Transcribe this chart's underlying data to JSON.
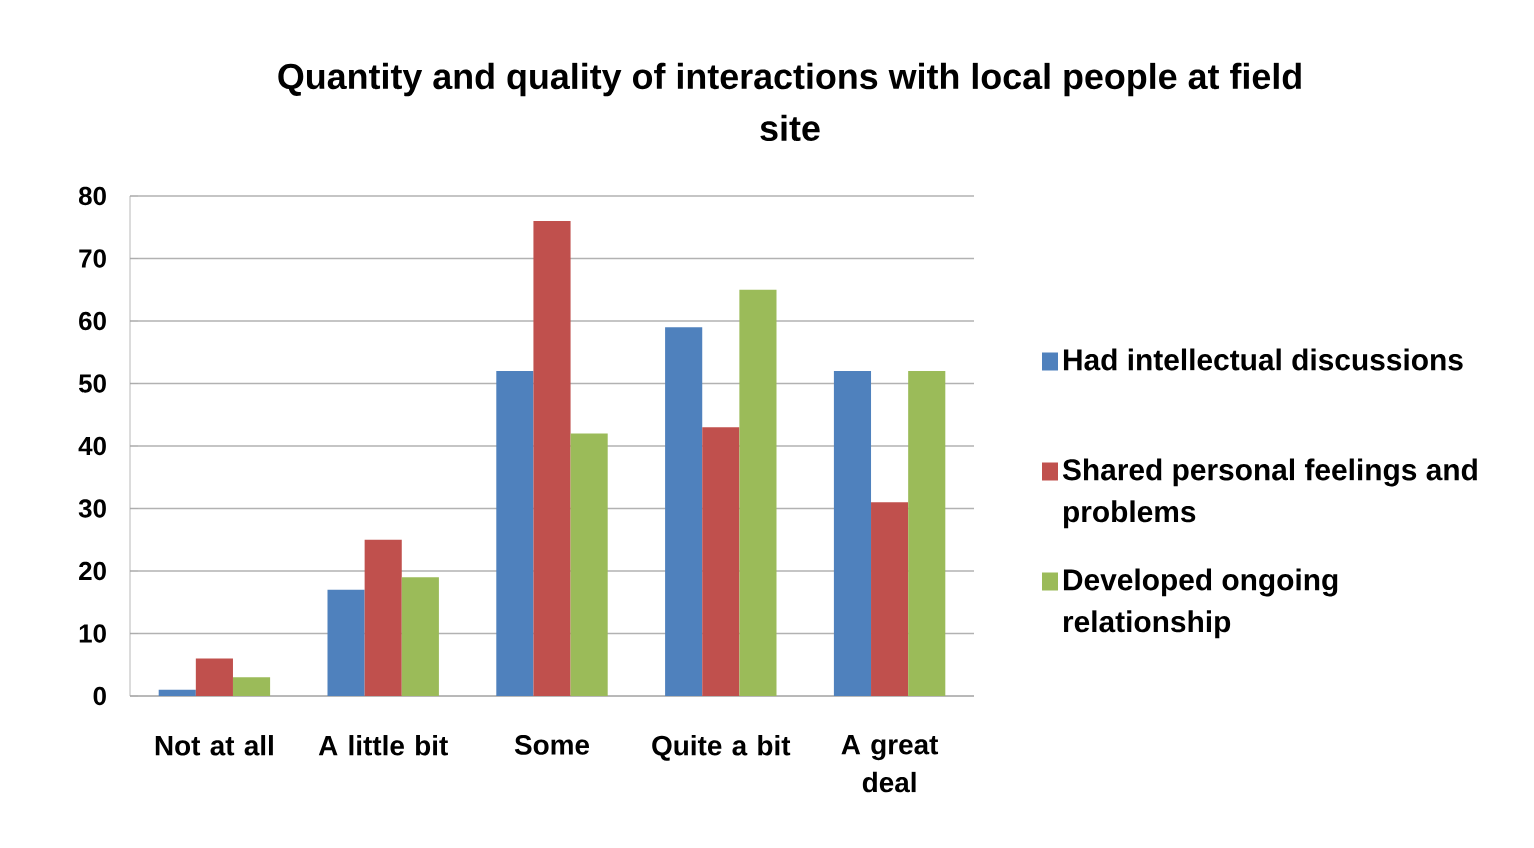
{
  "chart_data": {
    "type": "bar",
    "title": "Quantity and quality of interactions with local people  at field site",
    "categories": [
      "Not at all",
      "A little bit",
      "Some",
      "Quite a bit",
      "A great deal"
    ],
    "series": [
      {
        "name": "Had intellectual discussions",
        "color": "#4f81bd",
        "values": [
          1,
          17,
          52,
          59,
          52
        ]
      },
      {
        "name": "Shared personal feelings and problems",
        "color": "#c0504d",
        "values": [
          6,
          25,
          76,
          43,
          31
        ]
      },
      {
        "name": "Developed ongoing relationship",
        "color": "#9bbb59",
        "values": [
          3,
          19,
          42,
          65,
          52
        ]
      }
    ],
    "ylim": [
      0,
      80
    ],
    "yticks": [
      0,
      10,
      20,
      30,
      40,
      50,
      60,
      70,
      80
    ],
    "grid": "y",
    "legend": "right"
  }
}
